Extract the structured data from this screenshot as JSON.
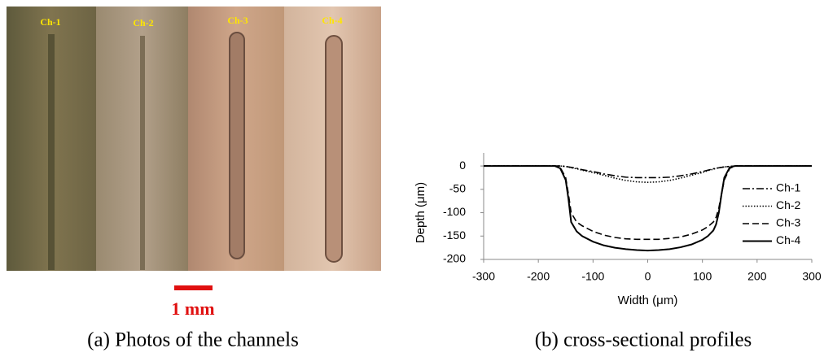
{
  "photos": {
    "labels": [
      "Ch-1",
      "Ch-2",
      "Ch-3",
      "Ch-4"
    ],
    "scale_label": "1 mm",
    "caption": "(a) Photos of the channels"
  },
  "chart_caption": "(b) cross-sectional profiles",
  "chart_data": {
    "type": "line",
    "x_label": "Width (μm)",
    "y_label": "Depth (μm)",
    "x": [
      -300,
      -250,
      -200,
      -170,
      -160,
      -150,
      -145,
      -140,
      -130,
      -120,
      -100,
      -80,
      -60,
      -40,
      -20,
      0,
      20,
      40,
      60,
      80,
      100,
      110,
      120,
      125,
      130,
      135,
      140,
      150,
      160,
      200,
      250,
      300
    ],
    "series": [
      {
        "name": "Ch-1",
        "color": "#000000",
        "style": "dashdot",
        "values": [
          0,
          0,
          0,
          0,
          0,
          -1,
          -2,
          -3,
          -5,
          -8,
          -12,
          -17,
          -21,
          -24,
          -25,
          -25,
          -25,
          -24,
          -21,
          -17,
          -12,
          -9,
          -6,
          -5,
          -4,
          -3,
          -2,
          -1,
          0,
          0,
          0,
          0
        ]
      },
      {
        "name": "Ch-2",
        "color": "#000000",
        "style": "dotted",
        "values": [
          0,
          0,
          0,
          0,
          0,
          -1,
          -2,
          -4,
          -6,
          -9,
          -14,
          -20,
          -26,
          -31,
          -34,
          -35,
          -34,
          -31,
          -26,
          -20,
          -14,
          -10,
          -7,
          -5,
          -4,
          -3,
          -2,
          -1,
          0,
          0,
          0,
          0
        ]
      },
      {
        "name": "Ch-3",
        "color": "#000000",
        "style": "dashed",
        "values": [
          0,
          0,
          0,
          0,
          -3,
          -25,
          -60,
          -100,
          -120,
          -128,
          -140,
          -148,
          -153,
          -156,
          -157,
          -157,
          -157,
          -155,
          -152,
          -146,
          -137,
          -130,
          -120,
          -110,
          -90,
          -60,
          -30,
          -5,
          0,
          0,
          0,
          0
        ]
      },
      {
        "name": "Ch-4",
        "color": "#000000",
        "style": "solid",
        "values": [
          0,
          0,
          0,
          0,
          -5,
          -30,
          -70,
          -120,
          -140,
          -150,
          -162,
          -170,
          -175,
          -178,
          -180,
          -181,
          -180,
          -178,
          -174,
          -168,
          -158,
          -150,
          -138,
          -125,
          -100,
          -60,
          -25,
          -3,
          0,
          0,
          0,
          0
        ]
      }
    ],
    "xlim": [
      -300,
      300
    ],
    "ylim": [
      -200,
      28
    ],
    "xticks": [
      -300,
      -200,
      -100,
      0,
      100,
      200,
      300
    ],
    "yticks": [
      0,
      -50,
      -100,
      -150,
      -200
    ],
    "legend": "right"
  }
}
